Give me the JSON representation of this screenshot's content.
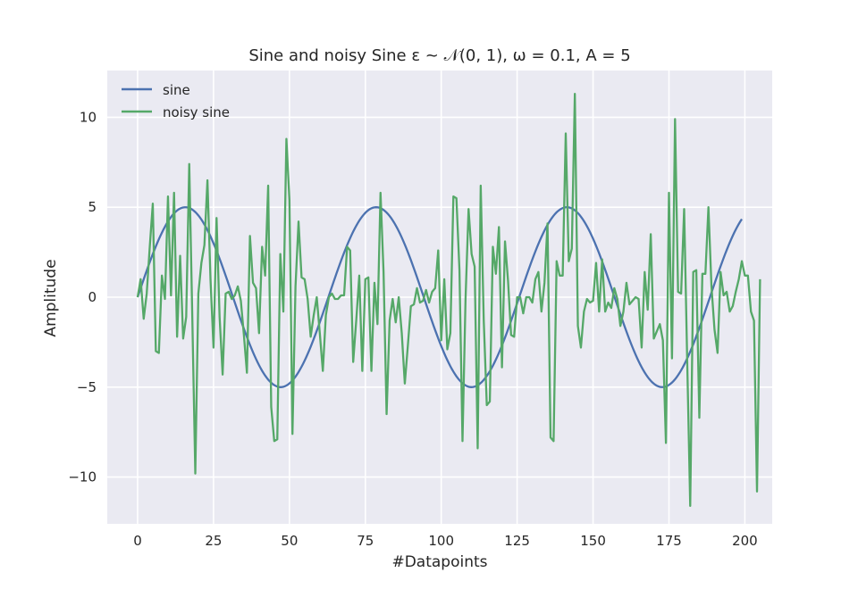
{
  "chart_data": {
    "type": "line",
    "title": "Sine and noisy Sine  ε ~ 𝒩(0, 1), ω = 0.1, A = 5",
    "xlabel": "#Datapoints",
    "ylabel": "Amplitude",
    "xlim": [
      -10,
      209
    ],
    "ylim": [
      -12.6,
      12.6
    ],
    "xticks": [
      0,
      25,
      50,
      75,
      100,
      125,
      150,
      175,
      200
    ],
    "yticks": [
      -10,
      -5,
      0,
      5,
      10
    ],
    "ytick_labels": [
      "−10",
      "−5",
      "0",
      "5",
      "10"
    ],
    "grid": true,
    "legend_position": "top-left",
    "colors": {
      "background": "#eaeaf2",
      "grid": "#ffffff",
      "sine": "#4c72b0",
      "noisy": "#55a868"
    },
    "series": [
      {
        "name": "sine",
        "function": "5*sin(0.1*x)",
        "x_range": [
          0,
          199
        ]
      },
      {
        "name": "noisy sine",
        "values": [
          0.0,
          1.0,
          -1.2,
          0.2,
          2.8,
          5.2,
          -3.0,
          -3.1,
          1.2,
          -0.1,
          5.6,
          0.1,
          5.8,
          -2.2,
          2.3,
          -2.3,
          -1.1,
          7.4,
          -1.0,
          -9.8,
          0.2,
          1.9,
          2.9,
          6.5,
          1.0,
          -2.8,
          4.4,
          -1.1,
          -4.3,
          0.2,
          0.3,
          -0.1,
          0.1,
          0.6,
          -0.2,
          -2.1,
          -4.2,
          3.4,
          0.8,
          0.5,
          -2.0,
          2.8,
          1.2,
          6.2,
          -6.1,
          -8.0,
          -7.9,
          2.4,
          -0.8,
          8.8,
          5.4,
          -7.6,
          0.6,
          4.2,
          1.1,
          1.0,
          -0.1,
          -2.2,
          -1.0,
          0.0,
          -2.0,
          -4.1,
          -1.0,
          0.0,
          0.2,
          -0.1,
          -0.1,
          0.1,
          0.1,
          2.8,
          2.6,
          -3.6,
          -1.3,
          1.2,
          -4.1,
          1.0,
          1.1,
          -4.1,
          0.8,
          -1.5,
          5.8,
          1.4,
          -6.5,
          -1.3,
          -0.1,
          -1.4,
          0.0,
          -2.0,
          -4.8,
          -2.7,
          -0.5,
          -0.4,
          0.5,
          -0.3,
          -0.2,
          0.4,
          -0.3,
          0.3,
          0.5,
          2.6,
          -2.4,
          1.0,
          -2.9,
          -2.0,
          5.6,
          5.5,
          1.5,
          -8.0,
          -0.1,
          4.9,
          2.4,
          1.7,
          -8.4,
          6.2,
          -1.3,
          -6.0,
          -5.8,
          2.8,
          1.3,
          3.9,
          -3.9,
          3.1,
          0.9,
          -2.1,
          -2.2,
          0.0,
          0.0,
          -0.9,
          0.0,
          0.0,
          -0.3,
          1.0,
          1.4,
          -0.8,
          0.8,
          4.1,
          -7.8,
          -8.0,
          2.0,
          1.2,
          1.2,
          9.1,
          2.0,
          2.7,
          11.3,
          -1.6,
          -2.8,
          -0.8,
          -0.1,
          -0.3,
          -0.2,
          1.9,
          -0.8,
          2.1,
          -0.8,
          -0.3,
          -0.6,
          0.5,
          -0.1,
          -1.6,
          -0.8,
          0.8,
          -0.4,
          -0.2,
          0.0,
          -0.1,
          -2.8,
          1.4,
          -0.7,
          3.5,
          -2.3,
          -1.9,
          -1.5,
          -2.4,
          -8.1,
          5.8,
          -3.4,
          9.9,
          0.3,
          0.2,
          4.9,
          -3.5,
          -11.6,
          1.4,
          1.5,
          -6.7,
          1.3,
          1.3,
          5.0,
          0.6,
          -1.8,
          -3.1,
          1.4,
          0.1,
          0.3,
          -0.8,
          -0.5,
          0.3,
          1.0,
          2.0,
          1.2,
          1.2,
          -0.8,
          -1.3,
          -10.8,
          1.0
        ]
      }
    ]
  }
}
